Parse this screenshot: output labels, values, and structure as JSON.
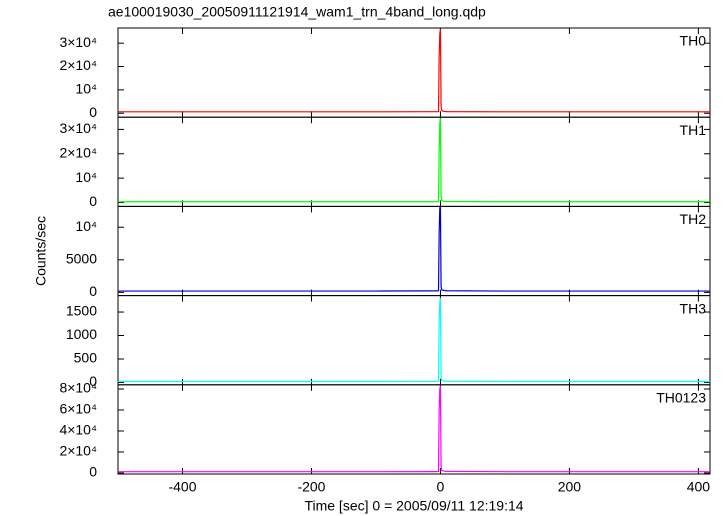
{
  "chart_data": [
    {
      "type": "line",
      "title": "ae100019030_20050911121914_wam1_trn_4band_long.qdp",
      "x": [
        -500,
        -300,
        -100,
        -10,
        -5,
        -3,
        -2,
        -1,
        0,
        1,
        2,
        5,
        10,
        100,
        300,
        418
      ],
      "series": [
        {
          "name": "TH0",
          "color": "#ff0000",
          "values": [
            600,
            600,
            600,
            650,
            650,
            700,
            24000,
            34000,
            36000,
            3000,
            1200,
            800,
            700,
            600,
            600,
            600
          ]
        }
      ],
      "xlim": [
        -500,
        418
      ],
      "xticks": [
        -400,
        -200,
        0,
        200,
        400
      ],
      "ylim": [
        -1700,
        36500
      ],
      "yticks": [
        0,
        {
          "value": 10000,
          "label": "10⁴"
        },
        {
          "value": 20000,
          "label": "2×10⁴"
        },
        {
          "value": 30000,
          "label": "3×10⁴"
        }
      ]
    },
    {
      "type": "line",
      "x": [
        -500,
        -300,
        -100,
        -10,
        -5,
        -3,
        -2,
        -1,
        0,
        1,
        2,
        5,
        10,
        100,
        300,
        418
      ],
      "series": [
        {
          "name": "TH1",
          "color": "#00ff00",
          "values": [
            300,
            300,
            300,
            320,
            330,
            350,
            21000,
            33000,
            34500,
            2500,
            900,
            500,
            400,
            300,
            300,
            300
          ]
        }
      ],
      "xlim": [
        -500,
        418
      ],
      "xticks": [
        -400,
        -200,
        0,
        200,
        400
      ],
      "ylim": [
        -1600,
        35000
      ],
      "yticks": [
        0,
        {
          "value": 10000,
          "label": "10⁴"
        },
        {
          "value": 20000,
          "label": "2×10⁴"
        },
        {
          "value": 30000,
          "label": "3×10⁴"
        }
      ]
    },
    {
      "type": "line",
      "ylabel": "Counts/sec",
      "x": [
        -500,
        -300,
        -100,
        -10,
        -5,
        -3,
        -2,
        -1,
        0,
        1,
        2,
        5,
        10,
        100,
        300,
        418
      ],
      "series": [
        {
          "name": "TH2",
          "color": "#0000cc",
          "values": [
            200,
            200,
            200,
            220,
            230,
            250,
            9000,
            13000,
            13100,
            900,
            400,
            300,
            250,
            200,
            200,
            200
          ]
        }
      ],
      "xlim": [
        -500,
        418
      ],
      "xticks": [
        -400,
        -200,
        0,
        200,
        400
      ],
      "ylim": [
        -500,
        13200
      ],
      "yticks": [
        0,
        5000,
        {
          "value": 10000,
          "label": "10⁴"
        }
      ]
    },
    {
      "type": "line",
      "x": [
        -500,
        -300,
        -100,
        -10,
        -5,
        -3,
        -2,
        -1,
        0,
        1,
        2,
        5,
        10,
        100,
        300,
        418
      ],
      "series": [
        {
          "name": "TH3",
          "color": "#00ffff",
          "values": [
            20,
            20,
            20,
            22,
            24,
            25,
            1300,
            1700,
            1800,
            120,
            50,
            30,
            25,
            20,
            20,
            20
          ]
        }
      ],
      "xlim": [
        -500,
        418
      ],
      "xticks": [
        -400,
        -200,
        0,
        200,
        400
      ],
      "ylim": [
        -50,
        1850
      ],
      "yticks": [
        0,
        500,
        1000,
        1500
      ]
    },
    {
      "type": "line",
      "xlabel": "Time [sec] 0 = 2005/09/11 12:19:14",
      "x": [
        -500,
        -300,
        -100,
        -10,
        -5,
        -3,
        -2,
        -1,
        0,
        1,
        2,
        5,
        10,
        100,
        300,
        418
      ],
      "series": [
        {
          "name": "TH0123",
          "color": "#ff00ff",
          "values": [
            1200,
            1200,
            1200,
            1250,
            1300,
            1350,
            60000,
            80000,
            83000,
            6000,
            2500,
            1800,
            1500,
            1200,
            1200,
            1200
          ]
        }
      ],
      "xlim": [
        -500,
        418
      ],
      "xticks": [
        -400,
        -200,
        0,
        200,
        400
      ],
      "ylim": [
        -1000,
        84000
      ],
      "yticks": [
        0,
        {
          "value": 20000,
          "label": "2×10⁴"
        },
        {
          "value": 40000,
          "label": "4×10⁴"
        },
        {
          "value": 60000,
          "label": "6×10⁴"
        },
        {
          "value": 80000,
          "label": "8×10⁴"
        }
      ]
    }
  ]
}
